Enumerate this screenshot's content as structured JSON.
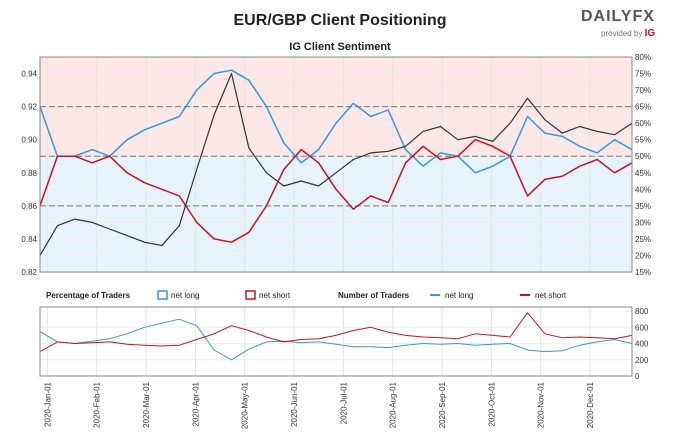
{
  "title": "EUR/GBP Client Positioning",
  "subtitle": "IG Client Sentiment",
  "logo": {
    "main": "DAILYFX",
    "sub": "provided by",
    "brand": "IG"
  },
  "colors": {
    "long": "#3399dd",
    "short": "#cc1122",
    "price": "#333333",
    "long_bg": "#e6f3fb",
    "short_bg": "#fce6e6"
  },
  "chart_data": [
    {
      "type": "line",
      "title": "IG Client Sentiment",
      "xlabel": "",
      "ylabel": "",
      "x_ticks": [
        "2020-Jan-01",
        "2020-Feb-01",
        "2020-Mar-01",
        "2020-Apr-01",
        "2020-May-01",
        "2020-Jun-01",
        "2020-Jul-01",
        "2020-Aug-01",
        "2020-Sep-01",
        "2020-Oct-01",
        "2020-Nov-01",
        "2020-Dec-01"
      ],
      "y_left": {
        "ticks": [
          "0.82",
          "0.84",
          "0.86",
          "0.88",
          "0.90",
          "0.92",
          "0.94"
        ],
        "range": [
          0.82,
          0.95
        ]
      },
      "y_right": {
        "ticks": [
          "15%",
          "20%",
          "25%",
          "30%",
          "35%",
          "40%",
          "45%",
          "50%",
          "55%",
          "60%",
          "65%",
          "70%",
          "75%",
          "80%"
        ],
        "range": [
          15,
          80
        ]
      },
      "reference_levels_pct": [
        35,
        50,
        65
      ],
      "grid": true,
      "series": [
        {
          "name": "net long",
          "axis": "right",
          "x": [
            0,
            10,
            20,
            30,
            40,
            50,
            60,
            70,
            80,
            90,
            100,
            110,
            120,
            130,
            140,
            150,
            160,
            170,
            180,
            190,
            200,
            210,
            220,
            230,
            240,
            250,
            260,
            270,
            280,
            290,
            300,
            310,
            320,
            330,
            340
          ],
          "values": [
            65,
            50,
            50,
            52,
            50,
            55,
            58,
            60,
            62,
            70,
            75,
            76,
            73,
            65,
            54,
            48,
            52,
            60,
            66,
            62,
            64,
            52,
            47,
            51,
            50,
            45,
            47,
            50,
            62,
            57,
            56,
            53,
            51,
            55,
            52
          ]
        },
        {
          "name": "net short",
          "axis": "right",
          "x": [
            0,
            10,
            20,
            30,
            40,
            50,
            60,
            70,
            80,
            90,
            100,
            110,
            120,
            130,
            140,
            150,
            160,
            170,
            180,
            190,
            200,
            210,
            220,
            230,
            240,
            250,
            260,
            270,
            280,
            290,
            300,
            310,
            320,
            330,
            340
          ],
          "values": [
            35,
            50,
            50,
            48,
            50,
            45,
            42,
            40,
            38,
            30,
            25,
            24,
            27,
            35,
            46,
            52,
            48,
            40,
            34,
            38,
            36,
            48,
            53,
            49,
            50,
            55,
            53,
            50,
            38,
            43,
            44,
            47,
            49,
            45,
            48
          ]
        },
        {
          "name": "EUR/GBP",
          "axis": "left",
          "x": [
            0,
            10,
            20,
            30,
            40,
            50,
            60,
            70,
            80,
            90,
            100,
            110,
            120,
            130,
            140,
            150,
            160,
            170,
            180,
            190,
            200,
            210,
            220,
            230,
            240,
            250,
            260,
            270,
            280,
            290,
            300,
            310,
            320,
            330,
            340
          ],
          "values": [
            0.83,
            0.848,
            0.852,
            0.85,
            0.846,
            0.842,
            0.838,
            0.836,
            0.848,
            0.882,
            0.915,
            0.94,
            0.895,
            0.88,
            0.872,
            0.875,
            0.872,
            0.88,
            0.888,
            0.892,
            0.893,
            0.896,
            0.905,
            0.908,
            0.9,
            0.902,
            0.899,
            0.91,
            0.925,
            0.912,
            0.904,
            0.908,
            0.905,
            0.903,
            0.91
          ]
        }
      ]
    },
    {
      "type": "line",
      "title": "",
      "legend_groups": [
        {
          "title": "Percentage of Traders",
          "entries": [
            "net long",
            "net short"
          ]
        },
        {
          "title": "Number of Traders",
          "entries": [
            "net long",
            "net short"
          ]
        }
      ],
      "y_right": {
        "ticks": [
          "0",
          "200",
          "400",
          "600",
          "800"
        ],
        "range": [
          0,
          850
        ]
      },
      "grid": true,
      "series": [
        {
          "name": "net long",
          "x": [
            0,
            10,
            20,
            30,
            40,
            50,
            60,
            70,
            80,
            90,
            100,
            110,
            120,
            130,
            140,
            150,
            160,
            170,
            180,
            190,
            200,
            210,
            220,
            230,
            240,
            250,
            260,
            270,
            280,
            290,
            300,
            310,
            320,
            330,
            340
          ],
          "values": [
            550,
            420,
            400,
            430,
            460,
            520,
            600,
            650,
            700,
            620,
            320,
            200,
            330,
            420,
            430,
            410,
            420,
            390,
            360,
            360,
            350,
            380,
            400,
            390,
            400,
            380,
            390,
            400,
            320,
            300,
            310,
            380,
            420,
            450,
            400
          ]
        },
        {
          "name": "net short",
          "x": [
            0,
            10,
            20,
            30,
            40,
            50,
            60,
            70,
            80,
            90,
            100,
            110,
            120,
            130,
            140,
            150,
            160,
            170,
            180,
            190,
            200,
            210,
            220,
            230,
            240,
            250,
            260,
            270,
            280,
            290,
            300,
            310,
            320,
            330,
            340
          ],
          "values": [
            300,
            420,
            400,
            410,
            420,
            390,
            380,
            370,
            380,
            450,
            520,
            620,
            560,
            480,
            420,
            450,
            460,
            500,
            560,
            600,
            540,
            500,
            480,
            470,
            460,
            520,
            500,
            480,
            780,
            520,
            470,
            480,
            470,
            460,
            500
          ]
        }
      ]
    }
  ]
}
